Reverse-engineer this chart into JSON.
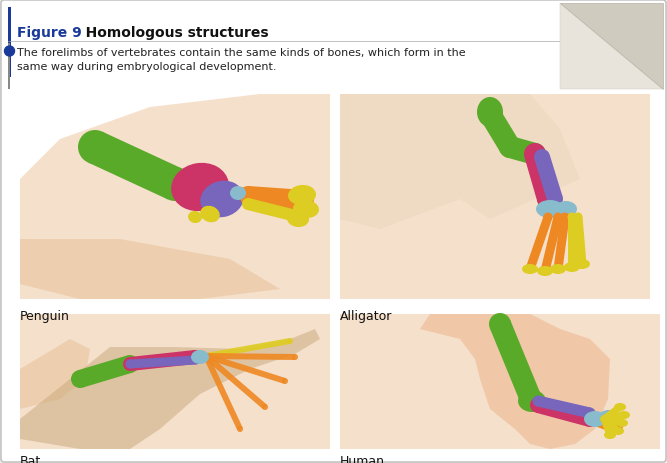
{
  "title_bold": "Figure 9",
  "title_normal": "   Homologous structures",
  "caption": "The forelimbs of vertebrates contain the same kinds of bones, which form in the\nsame way during embryological development.",
  "bg_color": "#ffffff",
  "title_color": "#1a3a99",
  "text_color": "#222222",
  "bone_green": "#5aaa2a",
  "bone_pink": "#cc3366",
  "bone_purple": "#7766bb",
  "bone_orange": "#ee8822",
  "bone_yellow": "#ddcc22",
  "bone_cyan": "#88bbcc",
  "skin_light": "#f5e0cc",
  "skin_medium": "#edcfb0",
  "figsize": [
    6.67,
    4.64
  ],
  "dpi": 100
}
